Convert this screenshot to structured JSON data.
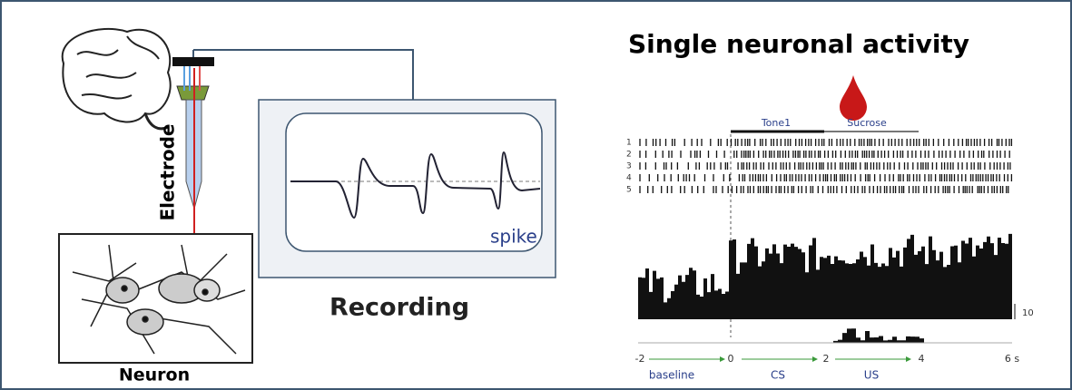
{
  "left_panel": {
    "electrode_label": "Electrode",
    "recording_label": "Recording",
    "neuron_label": "Neuron",
    "spike_label": "spike"
  },
  "right_panel": {
    "title": "Single neuronal activity",
    "tone_label": "Tone1",
    "sucrose_label": "Sucrose",
    "trial_labels": [
      "1",
      "2",
      "3",
      "4",
      "5"
    ],
    "scale_label": "10",
    "axis_ticks": [
      "-2",
      "0",
      "2",
      "4",
      "6 s"
    ],
    "phase_labels": [
      "baseline",
      "CS",
      "US"
    ]
  }
}
